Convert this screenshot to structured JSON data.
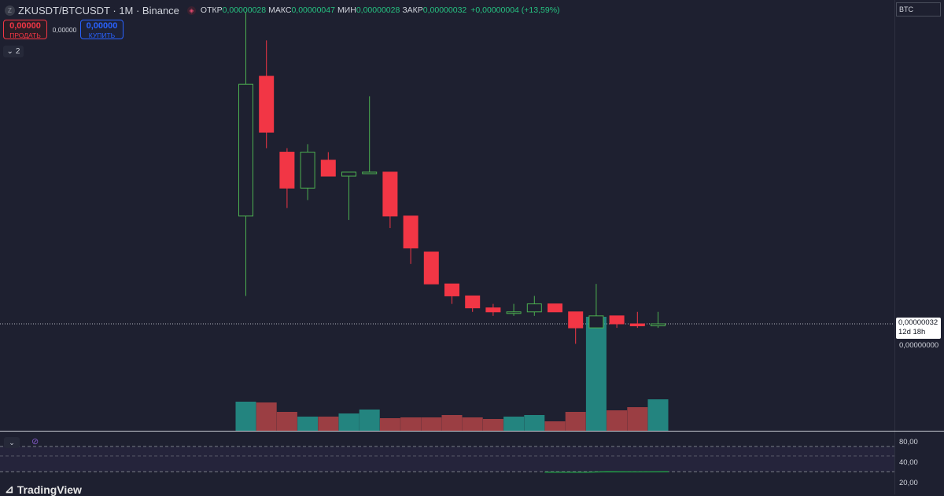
{
  "header": {
    "symbol_icon": "Z",
    "title": "ZKUSDT/BTCUSDT · 1M · Binance",
    "source_icon": "binance-icon",
    "ohlc": [
      {
        "key": "ОТКР",
        "value": "0,00000028"
      },
      {
        "key": "МАКС",
        "value": "0,00000047"
      },
      {
        "key": "МИН",
        "value": "0,00000028"
      },
      {
        "key": "ЗАКР",
        "value": "0,00000032"
      }
    ],
    "change": "+0,00000004 (+13,59%)"
  },
  "trade": {
    "sell_price": "0,00000",
    "sell_label": "ПРОДАТЬ",
    "spread": "0,00000",
    "buy_price": "0,00000",
    "buy_label": "КУПИТЬ"
  },
  "collapse": {
    "count": "2",
    "icon": "chevron-down-icon"
  },
  "price_axis": {
    "currency": "BTC",
    "last_price": "0,00000032",
    "countdown": "12d 18h",
    "zero_tick": "0,00000000"
  },
  "indicator_axis": {
    "ticks": [
      "80,00",
      "40,00",
      "20,00"
    ]
  },
  "logo": "TradingView",
  "colors": {
    "up": "#26a69a",
    "down": "#ef5350",
    "up_candle": "#4caf50",
    "down_candle": "#f23645",
    "background": "#1e2030",
    "rsi_line": "#22ab48",
    "rsi_band": "#7e57c2"
  },
  "chart_data": {
    "type": "candlestick",
    "candles": [
      {
        "o": 1.23,
        "h": 1.74,
        "l": 1.03,
        "c": 1.56,
        "dir": "up"
      },
      {
        "o": 1.58,
        "h": 1.67,
        "l": 1.4,
        "c": 1.44,
        "dir": "down"
      },
      {
        "o": 1.39,
        "h": 1.4,
        "l": 1.25,
        "c": 1.3,
        "dir": "down"
      },
      {
        "o": 1.3,
        "h": 1.41,
        "l": 1.27,
        "c": 1.39,
        "dir": "up"
      },
      {
        "o": 1.37,
        "h": 1.39,
        "l": 1.33,
        "c": 1.33,
        "dir": "down"
      },
      {
        "o": 1.33,
        "h": 1.34,
        "l": 1.22,
        "c": 1.34,
        "dir": "up"
      },
      {
        "o": 1.34,
        "h": 1.53,
        "l": 1.34,
        "c": 1.34,
        "dir": "up"
      },
      {
        "o": 1.34,
        "h": 1.34,
        "l": 1.2,
        "c": 1.23,
        "dir": "down"
      },
      {
        "o": 1.23,
        "h": 1.23,
        "l": 1.11,
        "c": 1.15,
        "dir": "down"
      },
      {
        "o": 1.14,
        "h": 1.14,
        "l": 1.06,
        "c": 1.06,
        "dir": "down"
      },
      {
        "o": 1.06,
        "h": 1.06,
        "l": 1.01,
        "c": 1.03,
        "dir": "down"
      },
      {
        "o": 1.03,
        "h": 1.03,
        "l": 0.99,
        "c": 1.0,
        "dir": "down"
      },
      {
        "o": 1.0,
        "h": 1.01,
        "l": 0.98,
        "c": 0.99,
        "dir": "down"
      },
      {
        "o": 0.99,
        "h": 1.01,
        "l": 0.98,
        "c": 0.99,
        "dir": "up"
      },
      {
        "o": 0.99,
        "h": 1.03,
        "l": 0.98,
        "c": 1.01,
        "dir": "up"
      },
      {
        "o": 1.01,
        "h": 1.01,
        "l": 0.99,
        "c": 0.99,
        "dir": "down"
      },
      {
        "o": 0.99,
        "h": 0.99,
        "l": 0.91,
        "c": 0.95,
        "dir": "down"
      },
      {
        "o": 0.95,
        "h": 1.06,
        "l": 0.95,
        "c": 0.98,
        "dir": "up"
      },
      {
        "o": 0.98,
        "h": 0.98,
        "l": 0.95,
        "c": 0.96,
        "dir": "down"
      },
      {
        "o": 0.96,
        "h": 0.99,
        "l": 0.95,
        "c": 0.955,
        "dir": "down"
      },
      {
        "o": 0.955,
        "h": 0.99,
        "l": 0.95,
        "c": 0.96,
        "dir": "up"
      }
    ],
    "volume": [
      {
        "v": 37,
        "dir": "up"
      },
      {
        "v": 36,
        "dir": "down"
      },
      {
        "v": 24,
        "dir": "down"
      },
      {
        "v": 18,
        "dir": "up"
      },
      {
        "v": 18,
        "dir": "down"
      },
      {
        "v": 22,
        "dir": "up"
      },
      {
        "v": 27,
        "dir": "up"
      },
      {
        "v": 16,
        "dir": "down"
      },
      {
        "v": 17,
        "dir": "down"
      },
      {
        "v": 17,
        "dir": "down"
      },
      {
        "v": 20,
        "dir": "down"
      },
      {
        "v": 17,
        "dir": "down"
      },
      {
        "v": 15,
        "dir": "down"
      },
      {
        "v": 18,
        "dir": "up"
      },
      {
        "v": 20,
        "dir": "up"
      },
      {
        "v": 12,
        "dir": "down"
      },
      {
        "v": 24,
        "dir": "down"
      },
      {
        "v": 145,
        "dir": "up"
      },
      {
        "v": 26,
        "dir": "down"
      },
      {
        "v": 30,
        "dir": "down"
      },
      {
        "v": 40,
        "dir": "up"
      }
    ],
    "rsi": [
      {
        "i": 14.5,
        "v": 18.5
      },
      {
        "i": 16.5,
        "v": 18.0
      },
      {
        "i": 17.5,
        "v": 20.0
      },
      {
        "i": 19.0,
        "v": 19.5
      },
      {
        "i": 20.5,
        "v": 20.0
      }
    ]
  }
}
